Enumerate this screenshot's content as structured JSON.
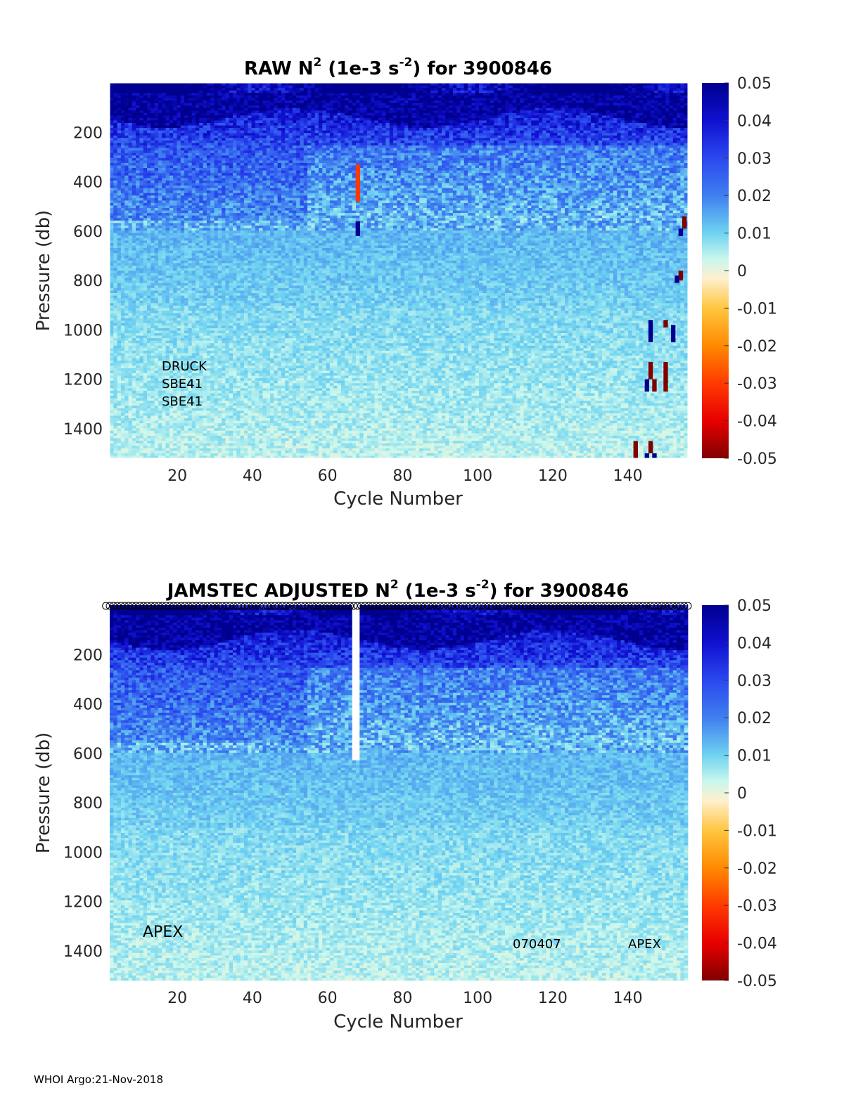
{
  "chart_data": [
    {
      "type": "heatmap",
      "title_parts": {
        "pre": "RAW N",
        "sup1": "2",
        "mid": " (1e-3 s",
        "sup2": "-2",
        "post": ") for 3900846"
      },
      "xlabel": "Cycle Number",
      "ylabel": "Pressure (db)",
      "xlim": [
        2,
        156
      ],
      "ylim": [
        1520,
        0
      ],
      "x_ticks": [
        20,
        40,
        60,
        80,
        100,
        120,
        140
      ],
      "y_ticks": [
        200,
        400,
        600,
        800,
        1000,
        1200,
        1400
      ],
      "colorbar": {
        "min": -0.05,
        "max": 0.05,
        "ticks": [
          "0.05",
          "0.04",
          "0.03",
          "0.02",
          "0.01",
          "0",
          "-0.01",
          "-0.02",
          "-0.03",
          "-0.04",
          "-0.05"
        ]
      },
      "annotations": [
        "DRUCK",
        "SBE41",
        "SBE41"
      ],
      "outliers": [
        {
          "cycle": 68,
          "p_from": 330,
          "p_to": 480,
          "value": -0.03
        },
        {
          "cycle": 68,
          "p_from": 560,
          "p_to": 620,
          "value": 0.05
        },
        {
          "cycle": 155,
          "p_from": 540,
          "p_to": 590,
          "value": -0.05
        },
        {
          "cycle": 154,
          "p_from": 590,
          "p_to": 620,
          "value": 0.05
        },
        {
          "cycle": 154,
          "p_from": 760,
          "p_to": 800,
          "value": -0.05
        },
        {
          "cycle": 153,
          "p_from": 780,
          "p_to": 810,
          "value": 0.05
        },
        {
          "cycle": 146,
          "p_from": 960,
          "p_to": 1050,
          "value": 0.05
        },
        {
          "cycle": 150,
          "p_from": 960,
          "p_to": 990,
          "value": -0.05
        },
        {
          "cycle": 152,
          "p_from": 980,
          "p_to": 1050,
          "value": 0.05
        },
        {
          "cycle": 146,
          "p_from": 1130,
          "p_to": 1200,
          "value": -0.05
        },
        {
          "cycle": 145,
          "p_from": 1200,
          "p_to": 1250,
          "value": 0.05
        },
        {
          "cycle": 147,
          "p_from": 1200,
          "p_to": 1250,
          "value": -0.05
        },
        {
          "cycle": 150,
          "p_from": 1130,
          "p_to": 1250,
          "value": -0.05
        },
        {
          "cycle": 142,
          "p_from": 1450,
          "p_to": 1520,
          "value": -0.05
        },
        {
          "cycle": 146,
          "p_from": 1450,
          "p_to": 1500,
          "value": -0.05
        },
        {
          "cycle": 145,
          "p_from": 1500,
          "p_to": 1520,
          "value": 0.05
        },
        {
          "cycle": 147,
          "p_from": 1500,
          "p_to": 1520,
          "value": 0.05
        }
      ]
    },
    {
      "type": "heatmap",
      "title_parts": {
        "pre": "JAMSTEC  ADJUSTED N",
        "sup1": "2",
        "mid": " (1e-3 s",
        "sup2": "-2",
        "post": ") for 3900846"
      },
      "xlabel": "Cycle Number",
      "ylabel": "Pressure (db)",
      "xlim": [
        2,
        156
      ],
      "ylim": [
        1520,
        0
      ],
      "x_ticks": [
        20,
        40,
        60,
        80,
        100,
        120,
        140
      ],
      "y_ticks": [
        200,
        400,
        600,
        800,
        1000,
        1200,
        1400
      ],
      "colorbar": {
        "min": -0.05,
        "max": 0.05,
        "ticks": [
          "0.05",
          "0.04",
          "0.03",
          "0.02",
          "0.01",
          "0",
          "-0.01",
          "-0.02",
          "-0.03",
          "-0.04",
          "-0.05"
        ]
      },
      "annotations": [
        "APEX",
        "070407",
        "APEX"
      ],
      "missing_cycle": 68,
      "top_markers": true
    }
  ],
  "footer": "WHOI Argo:21-Nov-2018"
}
